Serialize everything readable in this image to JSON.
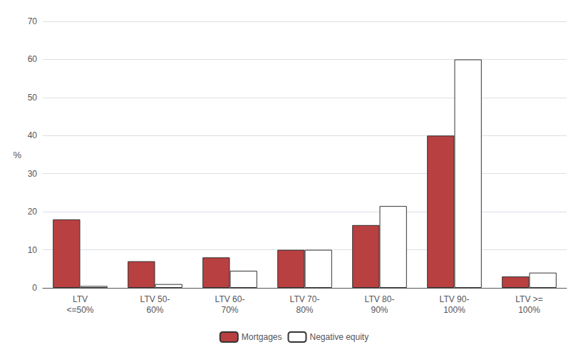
{
  "chart_data": {
    "type": "bar",
    "categories": [
      "LTV\n<=50%",
      "LTV 50-\n60%",
      "LTV 60-\n70%",
      "LTV 70-\n80%",
      "LTV 80-\n90%",
      "LTV 90-\n100%",
      "LTV >=\n100%"
    ],
    "series": [
      {
        "name": "Mortgages",
        "color": "#b94040",
        "values": [
          18,
          7,
          8,
          10,
          16.5,
          40,
          3
        ]
      },
      {
        "name": "Negative equity",
        "color": "#ffffff",
        "values": [
          0.5,
          1,
          4.5,
          10,
          21.5,
          60,
          4
        ]
      }
    ],
    "ylabel": "%",
    "ylim": [
      0,
      70
    ],
    "yticks": [
      0,
      10,
      20,
      30,
      40,
      50,
      60,
      70
    ],
    "grid": true,
    "legend": "bottom"
  }
}
